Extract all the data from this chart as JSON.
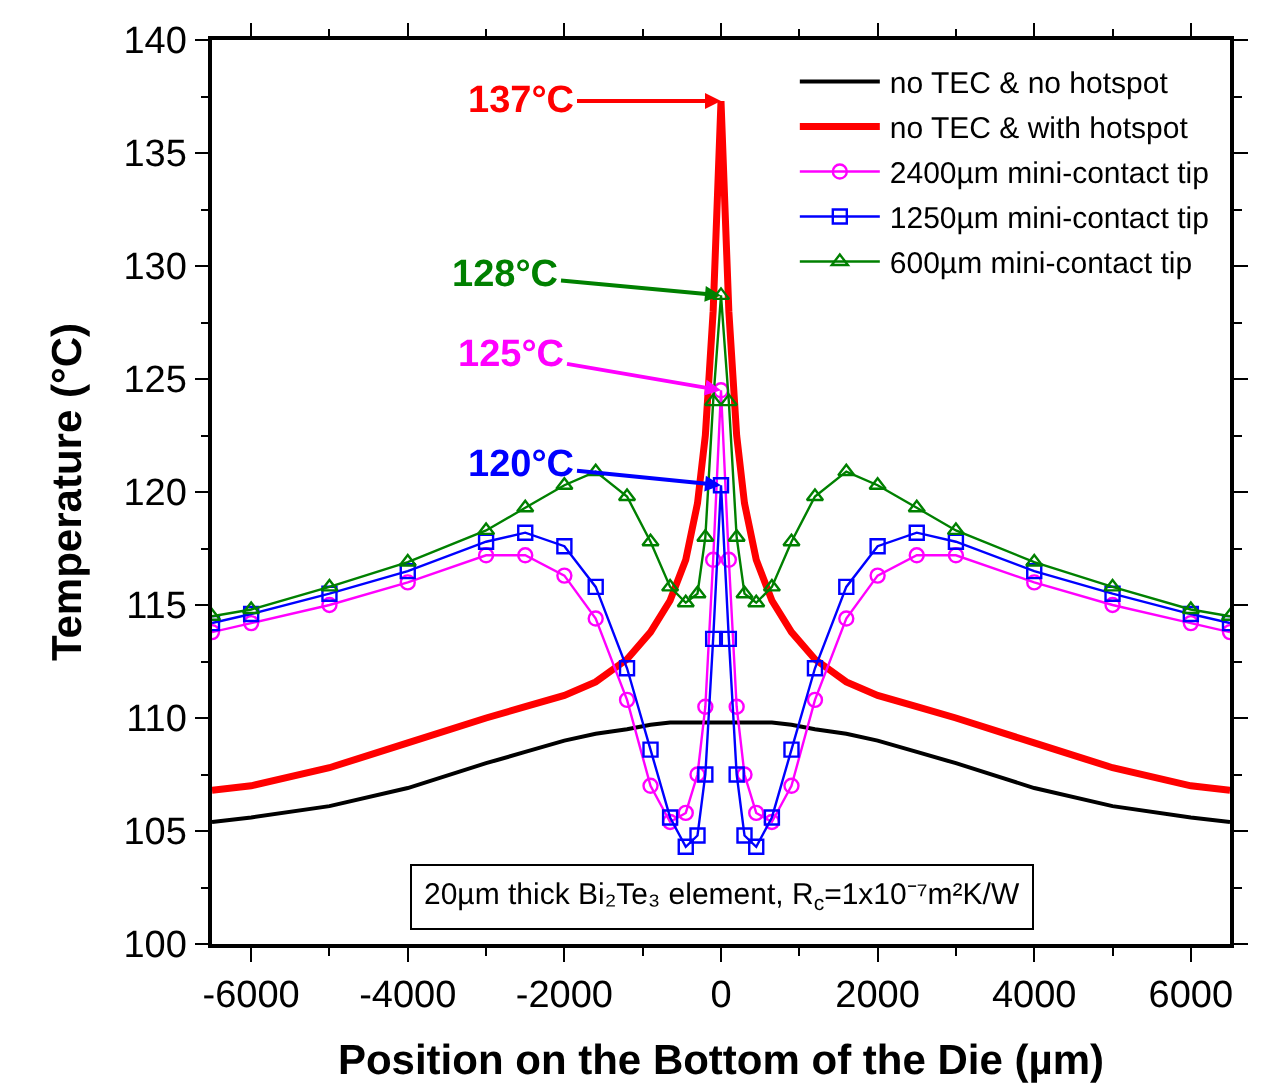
{
  "chart_data": {
    "type": "line",
    "xlabel": "Position on the Bottom of the Die (µm)",
    "ylabel": "Temperature (°C)",
    "x": [
      -6500,
      -6000,
      -5000,
      -4000,
      -3000,
      -2500,
      -2000,
      -1600,
      -1200,
      -900,
      -650,
      -450,
      -300,
      -200,
      -100,
      0,
      100,
      200,
      300,
      450,
      650,
      900,
      1200,
      1600,
      2000,
      2500,
      3000,
      4000,
      5000,
      6000,
      6500
    ],
    "series": [
      {
        "name": "no TEC & no hotspot",
        "color": "#000000",
        "marker": "none",
        "values": [
          105.4,
          105.6,
          106.1,
          106.9,
          108.0,
          108.5,
          109.0,
          109.3,
          109.5,
          109.7,
          109.8,
          109.8,
          109.8,
          109.8,
          109.8,
          109.8,
          109.8,
          109.8,
          109.8,
          109.8,
          109.8,
          109.7,
          109.5,
          109.3,
          109.0,
          108.5,
          108.0,
          106.9,
          106.1,
          105.6,
          105.4
        ]
      },
      {
        "name": "no TEC & with hotspot",
        "color": "#ff0000",
        "marker": "none",
        "values": [
          106.8,
          107.0,
          107.8,
          108.9,
          110.0,
          110.5,
          111.0,
          111.6,
          112.6,
          113.8,
          115.2,
          117.0,
          119.5,
          122.5,
          128,
          137.3,
          128,
          122.5,
          119.5,
          117.0,
          115.2,
          113.8,
          112.6,
          111.6,
          111.0,
          110.5,
          110.0,
          108.9,
          107.8,
          107.0,
          106.8
        ]
      },
      {
        "name": "2400µm mini-contact tip",
        "color": "#ff00ff",
        "marker": "circle",
        "values": [
          113.8,
          114.2,
          115.0,
          116.0,
          117.2,
          117.2,
          116.3,
          114.4,
          110.8,
          107.0,
          105.4,
          105.8,
          107.5,
          110.5,
          117,
          124.5,
          117,
          110.5,
          107.5,
          105.8,
          105.4,
          107.0,
          110.8,
          114.4,
          116.3,
          117.2,
          117.2,
          116.0,
          115.0,
          114.2,
          113.8
        ]
      },
      {
        "name": "1250µm mini-contact tip",
        "color": "#0000ff",
        "marker": "square",
        "values": [
          114.2,
          114.6,
          115.5,
          116.5,
          117.8,
          118.2,
          117.6,
          115.8,
          112.2,
          108.6,
          105.6,
          104.3,
          104.8,
          107.5,
          113.5,
          120.3,
          113.5,
          107.5,
          104.8,
          104.3,
          105.6,
          108.6,
          112.2,
          115.8,
          117.6,
          118.2,
          117.8,
          116.5,
          115.5,
          114.6,
          114.2
        ]
      },
      {
        "name": "600µm mini-contact tip",
        "color": "#008000",
        "marker": "triangle",
        "values": [
          114.5,
          114.8,
          115.8,
          116.9,
          118.3,
          119.3,
          120.3,
          120.9,
          119.8,
          117.8,
          115.8,
          115.1,
          115.5,
          118,
          124,
          128.7,
          124,
          118,
          115.5,
          115.1,
          115.8,
          117.8,
          119.8,
          120.9,
          120.3,
          119.3,
          118.3,
          116.9,
          115.8,
          114.8,
          114.5
        ]
      }
    ],
    "xlim": [
      -6500,
      6500
    ],
    "xticks": [
      -6000,
      -4000,
      -2000,
      0,
      2000,
      4000,
      6000
    ],
    "ylim": [
      100,
      140
    ],
    "yticks": [
      100,
      105,
      110,
      115,
      120,
      125,
      130,
      135,
      140
    ],
    "legend": "top right",
    "line_style": "solid",
    "annotations": [
      "137°C",
      "128°C",
      {
        "text": "125°C",
        "x": 0,
        "y": 124.5
      },
      "120°C",
      "20µm thick Bi₂Te₃ element, R$_{c}$=1x10⁻⁷m²K/W"
    ]
  }
}
